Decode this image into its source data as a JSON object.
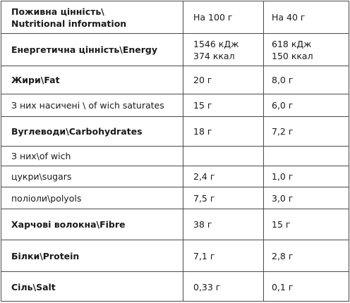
{
  "header": {
    "title_line1": "Поживна цінність\\",
    "title_line2": "Nutritional information",
    "col_100": "На 100 г",
    "col_40": "На 40 г"
  },
  "rows": [
    {
      "id": "energy",
      "name": "Енергетична цінність\\Energy",
      "bold": true,
      "v100": [
        "1546 кДж",
        "374 ккал"
      ],
      "v40": [
        "618 кДж",
        "150 ккал"
      ]
    },
    {
      "id": "fat",
      "name": "Жири\\Fat",
      "bold": true,
      "v100": [
        "20 г"
      ],
      "v40": [
        "8,0 г"
      ]
    },
    {
      "id": "saturates",
      "name": "З них насичені \\ of wich saturates",
      "bold": false,
      "v100": [
        "15 г"
      ],
      "v40": [
        "6,0 г"
      ]
    },
    {
      "id": "carbohydrates",
      "name": "Вуглеводи\\Carbohydrates",
      "bold": true,
      "v100": [
        "18 г"
      ],
      "v40": [
        "7,2 г"
      ]
    },
    {
      "id": "of-which",
      "name": "З них\\of wich",
      "bold": false,
      "v100": [
        ""
      ],
      "v40": [
        ""
      ]
    },
    {
      "id": "sugars",
      "name": "цукри\\sugars",
      "bold": false,
      "v100": [
        "2,4 г"
      ],
      "v40": [
        "1,0 г"
      ]
    },
    {
      "id": "polyols",
      "name": "поліоли\\polyols",
      "bold": false,
      "v100": [
        "7,5 г"
      ],
      "v40": [
        "3,0 г"
      ]
    },
    {
      "id": "fibre",
      "name": "Харчові волокна\\Fibre",
      "bold": true,
      "v100": [
        "38 г"
      ],
      "v40": [
        "15 г"
      ]
    },
    {
      "id": "protein",
      "name": "Білки\\Protein",
      "bold": true,
      "v100": [
        "7,1 г"
      ],
      "v40": [
        "2,8 г"
      ]
    },
    {
      "id": "salt",
      "name": "Сіль\\Salt",
      "bold": true,
      "v100": [
        "0,33 г"
      ],
      "v40": [
        "0,1 г"
      ]
    }
  ]
}
